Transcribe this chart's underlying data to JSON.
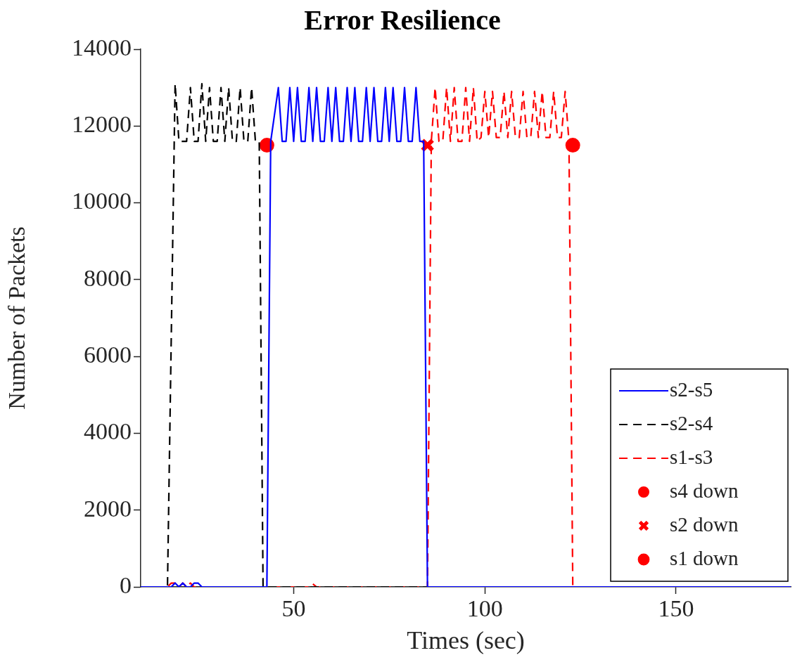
{
  "chart_data": {
    "type": "line",
    "title": "Error Resilience",
    "xlabel": "Times (sec)",
    "ylabel": "Number of Packets",
    "xlim": [
      10,
      180
    ],
    "xticks": [
      50,
      100,
      150
    ],
    "ylim": [
      0,
      14000
    ],
    "yticks": [
      0,
      2000,
      4000,
      6000,
      8000,
      10000,
      12000,
      14000
    ],
    "grid": false,
    "legend": "bottom right",
    "series": [
      {
        "name": "s2-s5",
        "type": "line",
        "color": "#0000ff",
        "line_style": "solid",
        "marker": "none",
        "x": [
          10,
          18,
          19,
          20,
          21,
          22,
          23,
          24,
          25,
          26,
          27,
          43,
          44,
          46,
          47,
          48,
          49,
          50,
          51,
          52,
          53,
          54,
          55,
          56,
          57,
          58,
          59,
          60,
          61,
          62,
          63,
          64,
          65,
          66,
          67,
          68,
          69,
          70,
          71,
          72,
          73,
          74,
          75,
          76,
          77,
          78,
          79,
          80,
          81,
          82,
          83,
          84,
          85,
          180
        ],
        "values": [
          0,
          0,
          100,
          0,
          100,
          0,
          0,
          100,
          100,
          0,
          0,
          0,
          11600,
          13000,
          11600,
          11600,
          13000,
          11600,
          13000,
          11600,
          11600,
          13000,
          11600,
          13000,
          11600,
          11600,
          13000,
          11600,
          13000,
          11600,
          11600,
          13000,
          11600,
          13000,
          11600,
          11600,
          13000,
          11600,
          13000,
          11600,
          11600,
          13000,
          11600,
          13000,
          11600,
          11600,
          13000,
          11600,
          11600,
          13000,
          11600,
          11600,
          0,
          0
        ]
      },
      {
        "name": "s2-s4",
        "type": "line",
        "color": "#000000",
        "line_style": "dashed",
        "marker": "none",
        "x": [
          10,
          17,
          19,
          20,
          21,
          22,
          23,
          24,
          25,
          26,
          27,
          28,
          29,
          30,
          31,
          32,
          33,
          34,
          35,
          36,
          37,
          38,
          39,
          40,
          41,
          42,
          180
        ],
        "values": [
          0,
          0,
          13100,
          11600,
          11600,
          11600,
          13000,
          11600,
          11600,
          13100,
          11600,
          13000,
          11600,
          11600,
          13000,
          11600,
          13000,
          11600,
          11600,
          13000,
          11600,
          11600,
          13000,
          11600,
          11600,
          0,
          0
        ]
      },
      {
        "name": "s1-s3",
        "type": "line",
        "color": "#ff0000",
        "line_style": "dashed",
        "marker": "none",
        "x": [
          10,
          17,
          18,
          19,
          20,
          21,
          22,
          23,
          24,
          25,
          54,
          55,
          56,
          85,
          86,
          87,
          88,
          89,
          90,
          91,
          92,
          93,
          94,
          95,
          96,
          97,
          98,
          99,
          100,
          101,
          102,
          103,
          104,
          105,
          106,
          107,
          108,
          109,
          110,
          111,
          112,
          113,
          114,
          115,
          116,
          117,
          118,
          119,
          120,
          121,
          122,
          123,
          180
        ],
        "values": [
          0,
          0,
          100,
          100,
          0,
          100,
          0,
          100,
          0,
          0,
          0,
          80,
          0,
          0,
          11600,
          13000,
          11600,
          11600,
          13000,
          11600,
          13000,
          11600,
          11600,
          13000,
          11600,
          13000,
          11600,
          11700,
          12900,
          11700,
          12900,
          11700,
          11700,
          12900,
          11700,
          12900,
          11700,
          11700,
          12900,
          11700,
          11700,
          12900,
          11700,
          12900,
          11700,
          11700,
          12900,
          11700,
          11700,
          12900,
          11600,
          0,
          0
        ]
      },
      {
        "name": "s4 down",
        "type": "scatter",
        "color": "#ff0000",
        "marker": "circle",
        "x": [
          43
        ],
        "values": [
          11500
        ]
      },
      {
        "name": "s2 down",
        "type": "scatter",
        "color": "#ff0000",
        "marker": "cross",
        "x": [
          85
        ],
        "values": [
          11500
        ]
      },
      {
        "name": "s1 down",
        "type": "scatter",
        "color": "#ff0000",
        "marker": "circle",
        "x": [
          123
        ],
        "values": [
          11500
        ]
      }
    ]
  }
}
